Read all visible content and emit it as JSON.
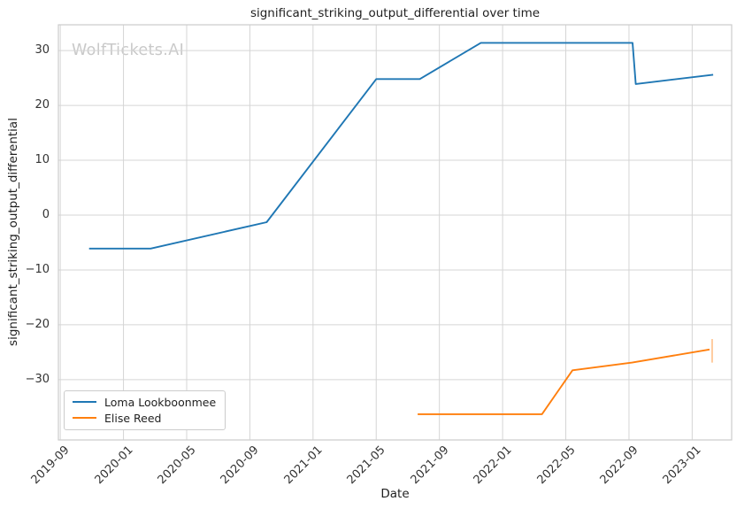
{
  "watermark": "WolfTickets.AI",
  "chart_data": {
    "type": "line",
    "title": "significant_striking_output_differential over time",
    "xlabel": "Date",
    "ylabel": "significant_striking_output_differential",
    "grid": true,
    "legend_position": "lower left",
    "x_tick_labels": [
      "2019-09",
      "2020-01",
      "2020-05",
      "2020-09",
      "2021-01",
      "2021-05",
      "2021-09",
      "2022-01",
      "2022-05",
      "2022-09",
      "2023-01"
    ],
    "x_tick_interval_months": 4,
    "x_axis_start": "2019-09-01",
    "xlim_months": [
      -0.12,
      42.5
    ],
    "y_ticks": [
      30,
      20,
      10,
      0,
      -10,
      -20,
      -30
    ],
    "ylim": [
      -41.0,
      34.7
    ],
    "series": [
      {
        "name": "Loma Lookboonmee",
        "color": "#1f77b4",
        "points": [
          [
            "2019-10-26",
            -6.1
          ],
          [
            "2020-02-23",
            -6.1
          ],
          [
            "2020-10-03",
            -1.3
          ],
          [
            "2021-05-01",
            24.8
          ],
          [
            "2021-07-24",
            24.8
          ],
          [
            "2021-11-20",
            31.4
          ],
          [
            "2022-09-08",
            31.4
          ],
          [
            "2022-09-14",
            23.9
          ],
          [
            "2023-02-11",
            25.6
          ]
        ]
      },
      {
        "name": "Elise Reed",
        "color": "#ff7f0e",
        "points": [
          [
            "2021-07-20",
            -36.3
          ],
          [
            "2022-03-16",
            -36.3
          ],
          [
            "2022-05-14",
            -28.3
          ],
          [
            "2022-09-07",
            -26.9
          ],
          [
            "2023-02-04",
            -24.5
          ]
        ],
        "last_point_error_bar": {
          "low": -26.9,
          "high": -22.6
        }
      }
    ]
  },
  "colors": {
    "grid": "#d5d5d5",
    "spine": "#cccccc",
    "text": "#1f1f1f",
    "tick_text": "#333333",
    "watermark": "#c9c9c9",
    "background": "#ffffff",
    "error_bar": "#ffc08a"
  }
}
